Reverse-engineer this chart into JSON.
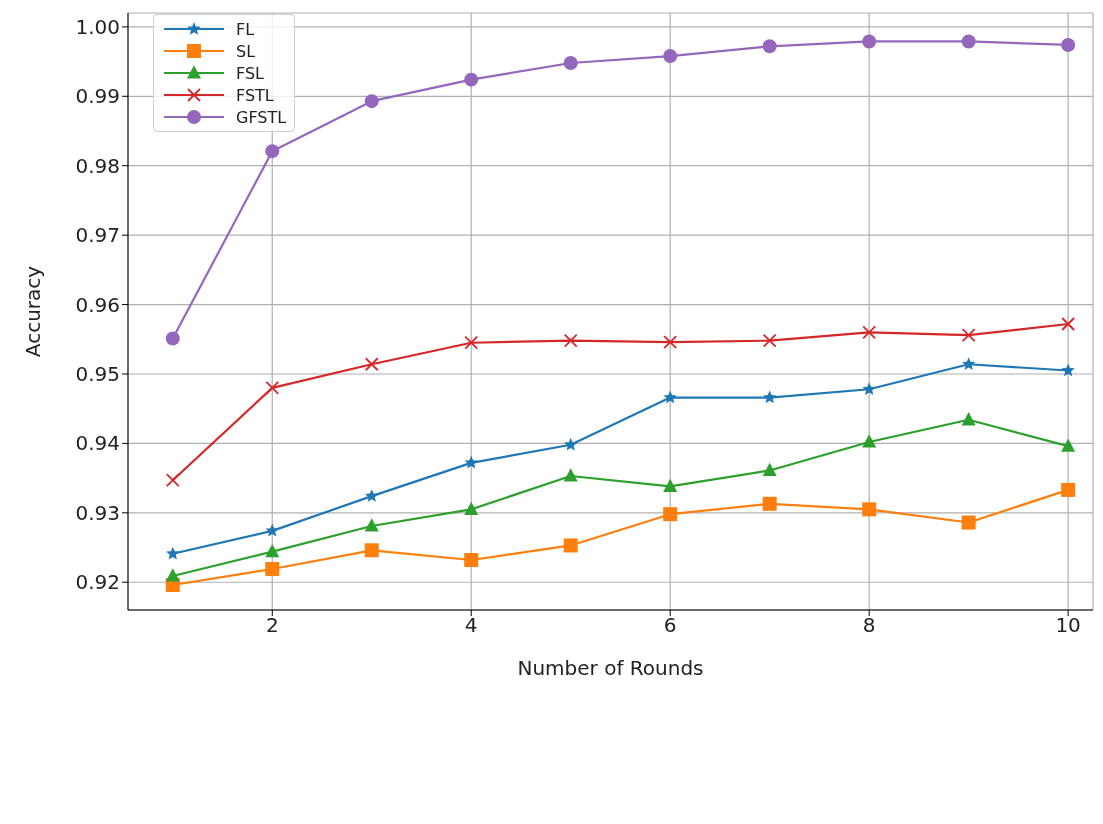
{
  "chart_data": {
    "type": "line",
    "xlabel": "Number of Rounds",
    "ylabel": "Accuracy",
    "x": [
      1,
      2,
      3,
      4,
      5,
      6,
      7,
      8,
      9,
      10
    ],
    "xlim": [
      0.55,
      10.25
    ],
    "xticks": [
      2,
      4,
      6,
      8,
      10
    ],
    "ylim": [
      0.916,
      1.002
    ],
    "yticks": [
      {
        "value": 0.92,
        "label": "0.92"
      },
      {
        "value": 0.93,
        "label": "0.93"
      },
      {
        "value": 0.94,
        "label": "0.94"
      },
      {
        "value": 0.95,
        "label": "0.95"
      },
      {
        "value": 0.96,
        "label": "0.96"
      },
      {
        "value": 0.97,
        "label": "0.97"
      },
      {
        "value": 0.98,
        "label": "0.98"
      },
      {
        "value": 0.99,
        "label": "0.99"
      },
      {
        "value": 1.0,
        "label": "1.00"
      }
    ],
    "grid": true,
    "legend": "top left",
    "line_style": "solid",
    "series": [
      {
        "name": "FL",
        "color": "#1f77b4",
        "marker": "star",
        "values": [
          0.9241,
          0.9274,
          0.9324,
          0.9372,
          0.9398,
          0.9466,
          0.9466,
          0.9478,
          0.9514,
          0.9505
        ]
      },
      {
        "name": "SL",
        "color": "#ff7f0e",
        "marker": "square",
        "values": [
          0.9196,
          0.9219,
          0.9246,
          0.9232,
          0.9253,
          0.9298,
          0.9313,
          0.9305,
          0.9286,
          0.9333
        ]
      },
      {
        "name": "FSL",
        "color": "#2ca02c",
        "marker": "triangle",
        "values": [
          0.9209,
          0.9244,
          0.9281,
          0.9305,
          0.9353,
          0.9338,
          0.9361,
          0.9402,
          0.9434,
          0.9396
        ]
      },
      {
        "name": "FSTL",
        "color": "#d62728",
        "marker": "cross",
        "values": [
          0.9347,
          0.948,
          0.9514,
          0.9545,
          0.9548,
          0.9546,
          0.9548,
          0.956,
          0.9556,
          0.9572
        ]
      },
      {
        "name": "GFSTL",
        "color": "#9467bd",
        "marker": "circle",
        "values": [
          0.9551,
          0.9821,
          0.9893,
          0.9924,
          0.9948,
          0.9958,
          0.9972,
          0.9979,
          0.9979,
          0.9974
        ]
      }
    ]
  }
}
